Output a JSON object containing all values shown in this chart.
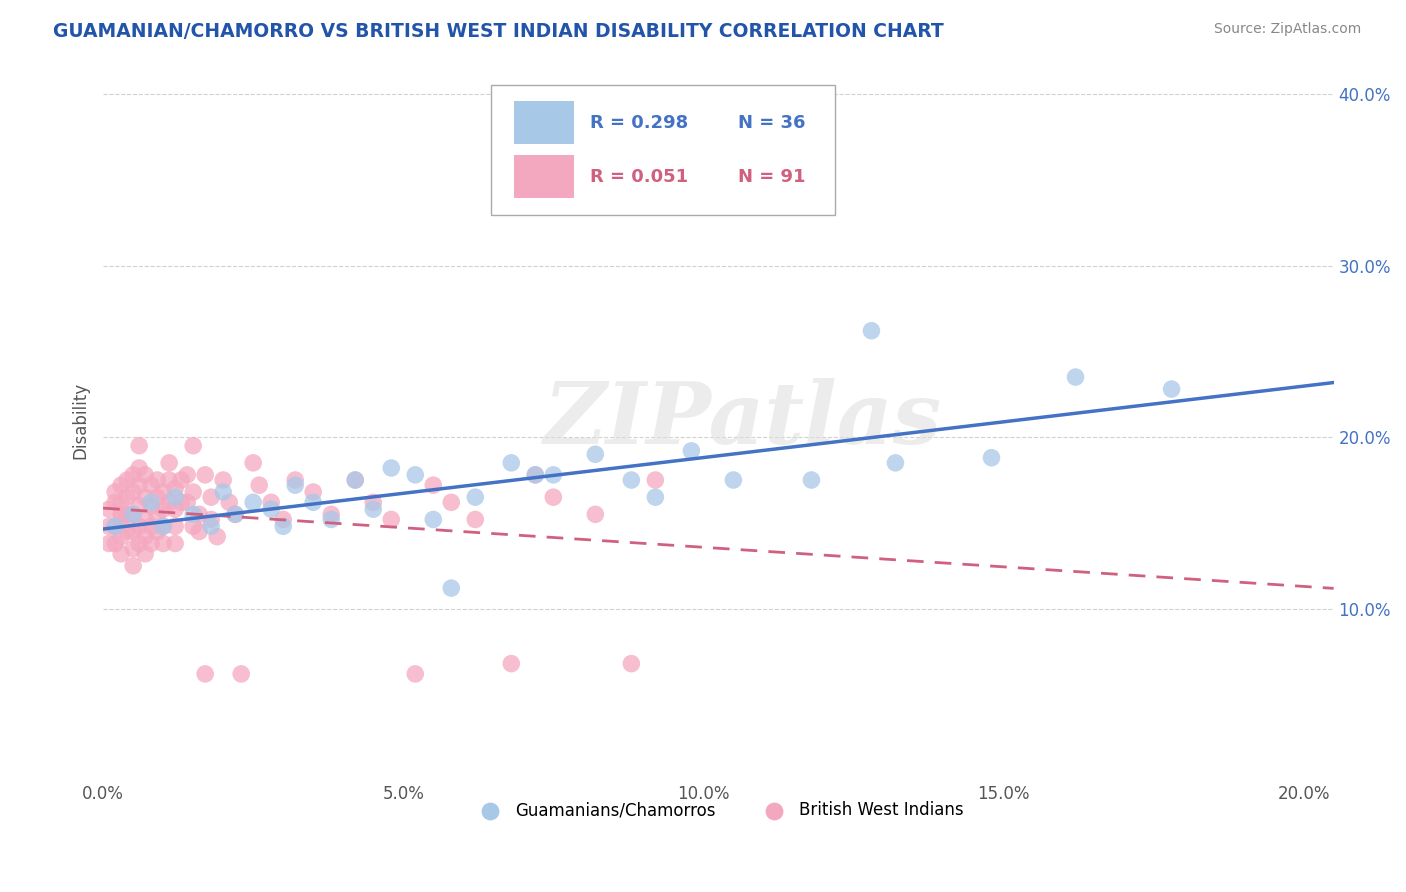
{
  "title": "GUAMANIAN/CHAMORRO VS BRITISH WEST INDIAN DISABILITY CORRELATION CHART",
  "source": "Source: ZipAtlas.com",
  "ylabel": "Disability",
  "xlim": [
    0.0,
    0.205
  ],
  "ylim": [
    0.0,
    0.42
  ],
  "xticks": [
    0.0,
    0.05,
    0.1,
    0.15,
    0.2
  ],
  "yticks": [
    0.1,
    0.2,
    0.3,
    0.4
  ],
  "xticklabels": [
    "0.0%",
    "5.0%",
    "10.0%",
    "15.0%",
    "20.0%"
  ],
  "yticklabels": [
    "10.0%",
    "20.0%",
    "30.0%",
    "40.0%"
  ],
  "color_blue": "#A8C8E8",
  "color_pink": "#F4A8C0",
  "trendline_blue": "#4472C4",
  "trendline_pink": "#D06080",
  "legend_R_blue": "R = 0.298",
  "legend_N_blue": "N = 36",
  "legend_R_pink": "R = 0.051",
  "legend_N_pink": "N = 91",
  "legend_label_blue": "Guamanians/Chamorros",
  "legend_label_pink": "British West Indians",
  "watermark": "ZIPatlas",
  "blue_x": [
    0.002,
    0.005,
    0.008,
    0.01,
    0.012,
    0.015,
    0.018,
    0.02,
    0.022,
    0.025,
    0.028,
    0.03,
    0.032,
    0.035,
    0.038,
    0.042,
    0.045,
    0.048,
    0.052,
    0.055,
    0.058,
    0.062,
    0.068,
    0.072,
    0.075,
    0.082,
    0.088,
    0.092,
    0.098,
    0.105,
    0.118,
    0.128,
    0.132,
    0.148,
    0.162,
    0.178
  ],
  "blue_y": [
    0.148,
    0.155,
    0.162,
    0.148,
    0.165,
    0.155,
    0.148,
    0.168,
    0.155,
    0.162,
    0.158,
    0.148,
    0.172,
    0.162,
    0.152,
    0.175,
    0.158,
    0.182,
    0.178,
    0.152,
    0.112,
    0.165,
    0.185,
    0.178,
    0.178,
    0.19,
    0.175,
    0.165,
    0.192,
    0.175,
    0.175,
    0.262,
    0.185,
    0.188,
    0.235,
    0.228
  ],
  "pink_x": [
    0.001,
    0.001,
    0.001,
    0.002,
    0.002,
    0.002,
    0.002,
    0.003,
    0.003,
    0.003,
    0.003,
    0.003,
    0.003,
    0.004,
    0.004,
    0.004,
    0.004,
    0.005,
    0.005,
    0.005,
    0.005,
    0.005,
    0.005,
    0.006,
    0.006,
    0.006,
    0.006,
    0.006,
    0.006,
    0.007,
    0.007,
    0.007,
    0.007,
    0.007,
    0.008,
    0.008,
    0.008,
    0.008,
    0.009,
    0.009,
    0.009,
    0.009,
    0.01,
    0.01,
    0.01,
    0.01,
    0.011,
    0.011,
    0.011,
    0.012,
    0.012,
    0.012,
    0.012,
    0.013,
    0.013,
    0.014,
    0.014,
    0.015,
    0.015,
    0.015,
    0.016,
    0.016,
    0.017,
    0.017,
    0.018,
    0.018,
    0.019,
    0.02,
    0.021,
    0.022,
    0.023,
    0.025,
    0.026,
    0.028,
    0.03,
    0.032,
    0.035,
    0.038,
    0.042,
    0.045,
    0.048,
    0.052,
    0.055,
    0.058,
    0.062,
    0.068,
    0.072,
    0.075,
    0.082,
    0.088,
    0.092
  ],
  "pink_y": [
    0.148,
    0.138,
    0.158,
    0.162,
    0.148,
    0.138,
    0.168,
    0.152,
    0.162,
    0.142,
    0.172,
    0.155,
    0.132,
    0.165,
    0.155,
    0.145,
    0.175,
    0.168,
    0.155,
    0.145,
    0.178,
    0.135,
    0.125,
    0.172,
    0.16,
    0.148,
    0.182,
    0.138,
    0.195,
    0.165,
    0.152,
    0.142,
    0.178,
    0.132,
    0.172,
    0.16,
    0.148,
    0.138,
    0.175,
    0.165,
    0.155,
    0.145,
    0.168,
    0.158,
    0.148,
    0.138,
    0.175,
    0.162,
    0.185,
    0.17,
    0.158,
    0.148,
    0.138,
    0.175,
    0.162,
    0.178,
    0.162,
    0.148,
    0.168,
    0.195,
    0.155,
    0.145,
    0.062,
    0.178,
    0.165,
    0.152,
    0.142,
    0.175,
    0.162,
    0.155,
    0.062,
    0.185,
    0.172,
    0.162,
    0.152,
    0.175,
    0.168,
    0.155,
    0.175,
    0.162,
    0.152,
    0.062,
    0.172,
    0.162,
    0.152,
    0.068,
    0.178,
    0.165,
    0.155,
    0.068,
    0.175
  ]
}
